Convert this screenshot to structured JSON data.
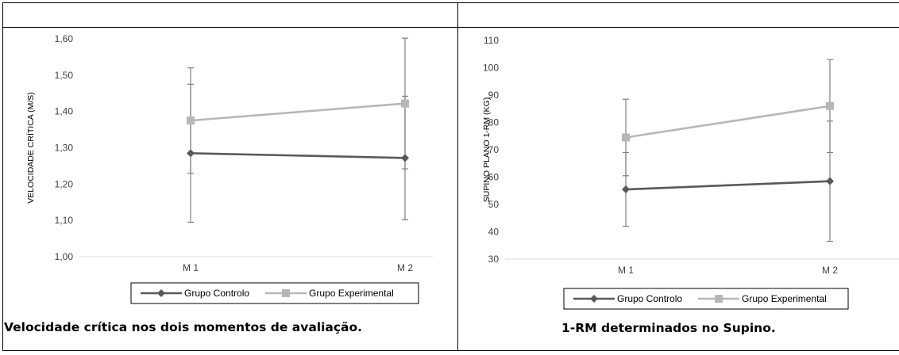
{
  "colors": {
    "control": "#595959",
    "experimental": "#b7b7b7",
    "error_bar": "#808080",
    "axis": "#d9d9d9",
    "border": "#000000"
  },
  "captions": {
    "left": "Velocidade crítica nos dois momentos de avaliação.",
    "right": "1-RM determinados no Supino."
  },
  "chart_data": [
    {
      "type": "line",
      "ylabel": "VELOCIDADE CRÍTICA (M/S)",
      "xlabel": "",
      "categories": [
        "M 1",
        "M 2"
      ],
      "ylim": [
        1.0,
        1.6
      ],
      "yticks": [
        1.0,
        1.1,
        1.2,
        1.3,
        1.4,
        1.5,
        1.6
      ],
      "ytick_labels": [
        "1,00",
        "1,10",
        "1,20",
        "1,30",
        "1,40",
        "1,50",
        "1,60"
      ],
      "grid": false,
      "legend_position": "bottom",
      "series": [
        {
          "name": "Grupo Controlo",
          "marker": "diamond",
          "color": "#595959",
          "values": [
            1.285,
            1.272
          ],
          "error": [
            0.19,
            0.17
          ]
        },
        {
          "name": "Grupo Experimental",
          "marker": "square",
          "color": "#b7b7b7",
          "values": [
            1.375,
            1.422
          ],
          "error": [
            0.145,
            0.18
          ]
        }
      ]
    },
    {
      "type": "line",
      "ylabel": "SUPINO PLANO 1-RM (KG)",
      "xlabel": "",
      "categories": [
        "M 1",
        "M 2"
      ],
      "ylim": [
        30,
        110
      ],
      "yticks": [
        30,
        40,
        50,
        60,
        70,
        80,
        90,
        100,
        110
      ],
      "ytick_labels": [
        "30",
        "40",
        "50",
        "60",
        "70",
        "80",
        "90",
        "100",
        "110"
      ],
      "grid": false,
      "legend_position": "bottom",
      "series": [
        {
          "name": "Grupo Controlo",
          "marker": "diamond",
          "color": "#595959",
          "values": [
            55.5,
            58.5
          ],
          "error": [
            13.5,
            22.0
          ]
        },
        {
          "name": "Grupo Experimental",
          "marker": "square",
          "color": "#b7b7b7",
          "values": [
            74.5,
            86.0
          ],
          "error": [
            14.0,
            17.0
          ]
        }
      ]
    }
  ]
}
